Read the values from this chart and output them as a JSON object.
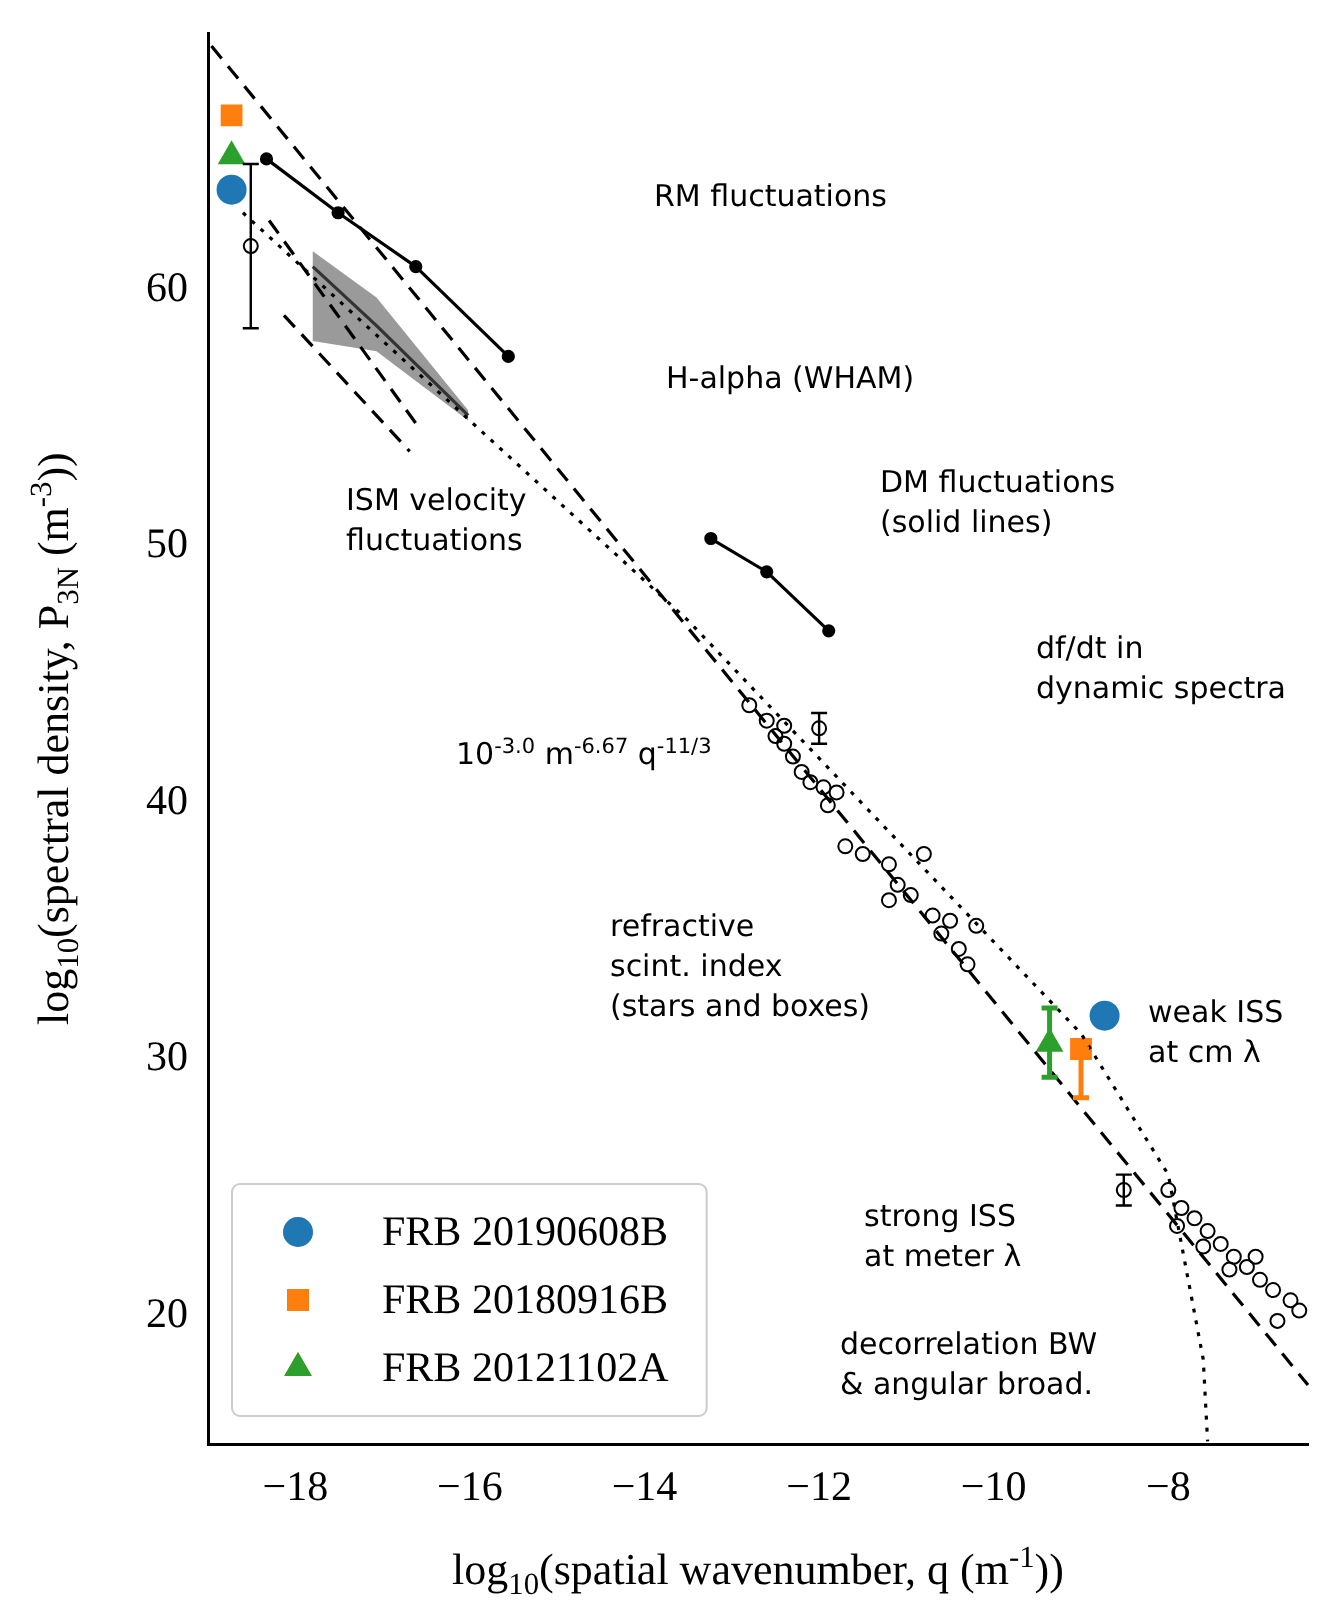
{
  "chart_data": {
    "type": "scatter",
    "xlabel": "log$_{10}$(spatial wavenumber, q (m$^{-1}$))",
    "ylabel": "log$_{10}$(spectral density, P$_{3N}$ (m$^{-3}$))",
    "xlim": [
      -19,
      -6.4
    ],
    "ylim": [
      15,
      70
    ],
    "xticks": [
      {
        "value": -18,
        "label": "−18"
      },
      {
        "value": -16,
        "label": "−16"
      },
      {
        "value": -14,
        "label": "−14"
      },
      {
        "value": -12,
        "label": "−12"
      },
      {
        "value": -10,
        "label": "−10"
      },
      {
        "value": -8,
        "label": "−8"
      }
    ],
    "yticks": [
      20,
      30,
      40,
      50,
      60
    ],
    "grid": false,
    "legend": "bottom left",
    "series": [
      {
        "type": "line",
        "color": "#000000",
        "line_style": "dashed",
        "marker": "none",
        "x": [
          -18.96,
          -6.4
        ],
        "values": [
          69.5,
          17.3
        ]
      },
      {
        "type": "line",
        "color": "#000000",
        "line_style": "dotted",
        "marker": "none",
        "x": [
          -18.6,
          -13.5,
          -9.0,
          -8.0,
          -7.6,
          -7.55
        ],
        "values": [
          63.0,
          47.1,
          31.0,
          25.5,
          18.3,
          15.1
        ]
      },
      {
        "type": "line",
        "color": "#000000",
        "line_style": "dashed",
        "marker": "none",
        "x": [
          -18.3,
          -16.6
        ],
        "values": [
          62.7,
          54.7
        ]
      },
      {
        "type": "line",
        "color": "#000000",
        "line_style": "dashed",
        "marker": "none",
        "x": [
          -18.13,
          -16.69
        ],
        "values": [
          59.0,
          53.7
        ]
      },
      {
        "type": "line",
        "color": "#000000",
        "line_style": "solid",
        "marker": "circle",
        "x": [
          -18.33,
          -17.51,
          -16.62,
          -15.56
        ],
        "values": [
          65.1,
          63.0,
          60.9,
          57.4
        ]
      },
      {
        "type": "line",
        "color": "#000000",
        "line_style": "solid",
        "marker": "circle",
        "x": [
          -13.24,
          -12.6,
          -11.89
        ],
        "values": [
          50.3,
          49.0,
          46.7
        ]
      },
      {
        "type": "line",
        "color": "#333333",
        "line_style": "solid",
        "marker": "none",
        "x": [
          -17.8,
          -17.07,
          -16.02
        ],
        "values": [
          60.9,
          58.6,
          55.1
        ],
        "lower": [
          58.0,
          57.6,
          54.9
        ],
        "upper": [
          61.5,
          59.7,
          55.3
        ]
      },
      {
        "type": "scatter",
        "color": "#000000",
        "marker": "circle",
        "x": [
          -18.51,
          -12.0,
          -8.51
        ],
        "values": [
          61.7,
          42.9,
          24.9
        ],
        "errors": [
          3.2,
          0.6,
          0.6
        ]
      },
      {
        "type": "scatter",
        "color": "#000000",
        "marker": "circle",
        "x": [
          -12.8,
          -12.6,
          -12.5,
          -12.4,
          -12.3,
          -12.2,
          -12.1,
          -11.95,
          -11.8,
          -11.9,
          -12.4,
          -11.7,
          -11.5,
          -11.2,
          -11.1,
          -11.2,
          -10.95,
          -10.7,
          -10.6,
          -10.4,
          -10.3,
          -10.2,
          -10.5,
          -10.8,
          -8.0,
          -7.85,
          -7.7,
          -7.55,
          -7.4,
          -7.25,
          -7.1,
          -6.95,
          -6.8,
          -6.6,
          -6.5,
          -7.9,
          -7.6,
          -7.3,
          -7.0,
          -6.75
        ],
        "values": [
          43.8,
          43.2,
          42.6,
          42.3,
          41.8,
          41.2,
          40.8,
          40.6,
          40.4,
          39.9,
          43.0,
          38.3,
          38.0,
          37.6,
          36.8,
          36.2,
          36.4,
          35.6,
          34.9,
          34.3,
          33.7,
          35.2,
          35.4,
          38.0,
          24.9,
          24.2,
          23.8,
          23.3,
          22.8,
          22.3,
          21.9,
          21.4,
          21.0,
          20.6,
          20.2,
          23.5,
          22.7,
          21.8,
          22.3,
          19.8
        ]
      },
      {
        "name": "FRB 20190608B",
        "type": "scatter",
        "color": "#1f77b4",
        "marker": "circle",
        "x": [
          -18.73,
          -8.73
        ],
        "values": [
          63.9,
          31.7
        ]
      },
      {
        "name": "FRB 20180916B",
        "type": "scatter",
        "color": "#ff7f0e",
        "marker": "square",
        "x": [
          -18.73,
          -9.0
        ],
        "values": [
          66.8,
          30.4
        ],
        "errors": [
          null,
          [
            28.5,
            30.4
          ]
        ]
      },
      {
        "name": "FRB 20121102A",
        "type": "scatter",
        "color": "#2ca02c",
        "marker": "triangle",
        "x": [
          -18.73,
          -9.36
        ],
        "values": [
          65.2,
          30.6
        ],
        "errors": [
          null,
          [
            29.3,
            32.0
          ]
        ]
      }
    ],
    "annotations": [
      "RM fluctuations",
      "H-alpha (WHAM)",
      "ISM velocity\nfluctuations",
      "10$^{-3.0}$ m$^{-6.67}$ q$^{-11/3}$",
      "DM fluctuations\n(solid lines)",
      "df/dt in\ndynamic spectra",
      "refractive\nscint. index\n(stars and boxes)",
      "weak ISS\nat cm λ",
      "strong ISS\nat meter λ",
      "decorrelation BW\n& angular broad."
    ]
  }
}
